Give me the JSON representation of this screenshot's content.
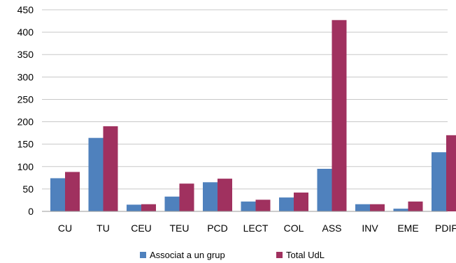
{
  "chart_data": {
    "type": "bar",
    "categories": [
      "CU",
      "TU",
      "CEU",
      "TEU",
      "PCD",
      "LECT",
      "COL",
      "ASS",
      "INV",
      "EME",
      "PDIF"
    ],
    "series": [
      {
        "name": "Associat a un grup",
        "color": "#4f81bd",
        "values": [
          74,
          164,
          15,
          33,
          65,
          22,
          31,
          95,
          16,
          6,
          132
        ]
      },
      {
        "name": "Total UdL",
        "color": "#a0315f",
        "values": [
          88,
          190,
          16,
          62,
          73,
          26,
          42,
          427,
          16,
          22,
          170
        ]
      }
    ],
    "yticks": [
      "0",
      "50",
      "100",
      "150",
      "200",
      "250",
      "300",
      "350",
      "400",
      "450"
    ],
    "ylim": [
      0,
      450
    ],
    "grid": true,
    "legend_position": "bottom"
  }
}
